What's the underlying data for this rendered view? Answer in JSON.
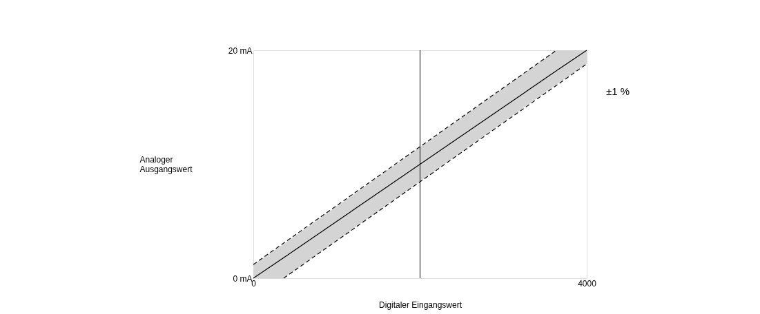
{
  "chart_data": {
    "type": "line",
    "xlabel": "Digitaler Eingangswert",
    "ylabel": "Analoger Ausgangswert",
    "x": [
      0,
      364,
      3636,
      4000
    ],
    "series": [
      {
        "color": "#000000",
        "values": [
          0,
          1.8,
          18.2,
          20
        ],
        "lower": [
          0,
          0,
          17.0,
          18.8
        ],
        "upper": [
          1.2,
          3.0,
          20,
          20
        ],
        "line_style": "solid"
      },
      {
        "color": "#000000",
        "x": [
          0,
          3636
        ],
        "values": [
          1.2,
          20
        ],
        "line_style": "dashed"
      },
      {
        "color": "#000000",
        "x": [
          364,
          4000
        ],
        "values": [
          0,
          18.8
        ],
        "line_style": "dashed"
      }
    ],
    "xlim": [
      0,
      4000
    ],
    "xticks": [
      0,
      {
        "value": 4000,
        "label": "4000"
      }
    ],
    "ylim": [
      0,
      20
    ],
    "yticks": [
      {
        "value": 0,
        "label": "0 mA"
      },
      {
        "value": 20,
        "label": "20 mA"
      }
    ],
    "ref_lines": [
      {
        "axis": "x",
        "value": 2000,
        "color": "#000000"
      }
    ],
    "annotations": [
      "±1 %"
    ],
    "grid": false,
    "marker": "none"
  }
}
